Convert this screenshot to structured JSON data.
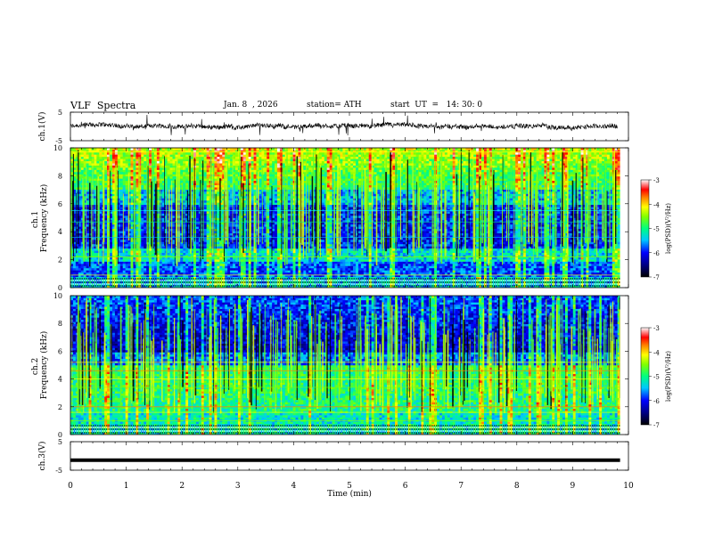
{
  "header": {
    "title": "VLF  Spectra",
    "date": "Jan. 8  , 2026",
    "station": "station= ATH",
    "start_ut": "start  UT  =   14: 30: 0"
  },
  "chart_data": [
    {
      "type": "line",
      "name": "ch1-waveform",
      "ylabel": "ch.1(V)",
      "ylim": [
        -5,
        5
      ],
      "yticks": [
        "5",
        "-5"
      ],
      "xlim": [
        0,
        10
      ],
      "trace": "noisy waveform near 0 V with spikes",
      "trace_data_span_min": [
        0,
        9.8
      ]
    },
    {
      "type": "heatmap",
      "name": "ch1-spectrogram",
      "ylabel": "ch.1\nFrequency  (kHz)",
      "ylim": [
        0,
        10
      ],
      "yticks": [
        "0",
        "2",
        "4",
        "6",
        "8",
        "10"
      ],
      "xlim": [
        0,
        10
      ],
      "colorbar": {
        "label": "log(PSD)(V²/Hz)",
        "range": [
          -7,
          -3
        ],
        "ticks": [
          "-3",
          "-4",
          "-5",
          "-6",
          "-7"
        ]
      }
    },
    {
      "type": "heatmap",
      "name": "ch2-spectrogram",
      "ylabel": "ch.2\nFrequency  (kHz)",
      "ylim": [
        0,
        10
      ],
      "yticks": [
        "0",
        "2",
        "4",
        "6",
        "8",
        "10"
      ],
      "xlim": [
        0,
        10
      ],
      "colorbar": {
        "label": "log(PSD)(V²/Hz)",
        "range": [
          -7,
          -3
        ],
        "ticks": [
          "-3",
          "-4",
          "-5",
          "-6",
          "-7"
        ]
      }
    },
    {
      "type": "line",
      "name": "ch3-waveform",
      "ylabel": "ch.3(V)",
      "ylim": [
        -5,
        5
      ],
      "yticks": [
        "5",
        "-5"
      ],
      "xlim": [
        0,
        10
      ],
      "trace": "flat thick line near -1.5 V",
      "trace_level_v": -1.5
    }
  ],
  "xaxis": {
    "label": "Time  (min)",
    "ticks": [
      "0",
      "1",
      "2",
      "3",
      "4",
      "5",
      "6",
      "7",
      "8",
      "9",
      "10"
    ],
    "range": [
      0,
      10
    ]
  }
}
